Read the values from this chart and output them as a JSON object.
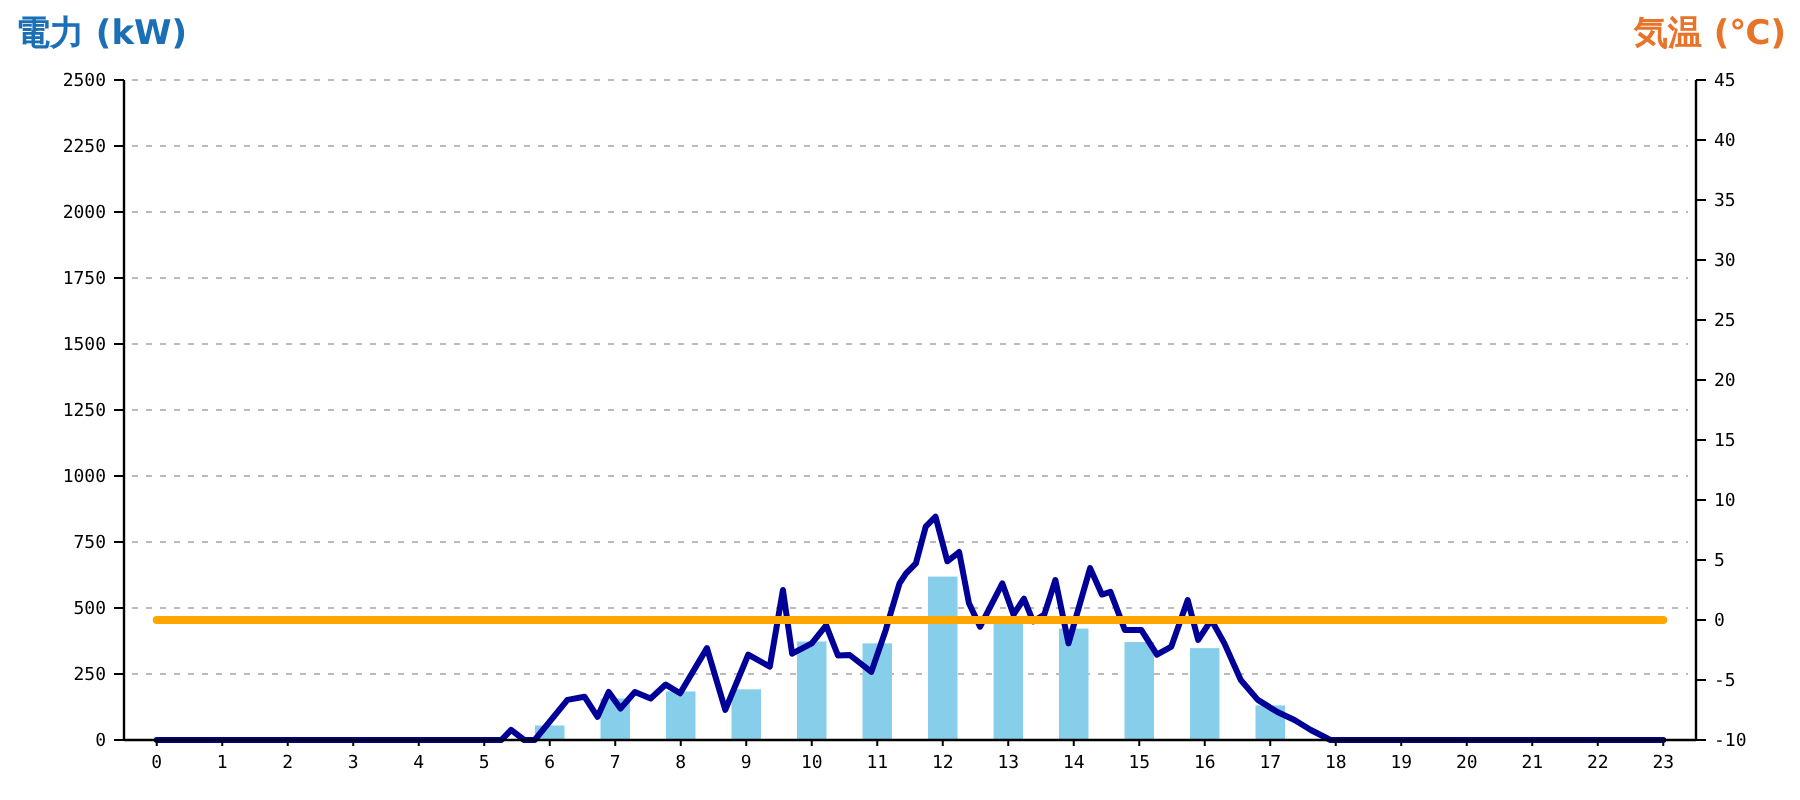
{
  "chart_data": {
    "type": "bar",
    "ylabel": "電力 (kW)",
    "y2label": "気温 (℃)",
    "x": [
      0,
      1,
      2,
      3,
      4,
      5,
      6,
      7,
      8,
      9,
      10,
      11,
      12,
      13,
      14,
      15,
      16,
      17,
      18,
      19,
      20,
      21,
      22,
      23
    ],
    "xlim": [
      -0.5,
      23.5
    ],
    "xticks": [
      0,
      1,
      2,
      3,
      4,
      5,
      6,
      7,
      8,
      9,
      10,
      11,
      12,
      13,
      14,
      15,
      16,
      17,
      18,
      19,
      20,
      21,
      22,
      23
    ],
    "series": [
      {
        "color": "#87ceeb",
        "values": [
          0,
          0,
          0,
          0,
          0,
          0,
          55,
          157,
          184,
          192,
          373,
          366,
          619,
          442,
          422,
          371,
          348,
          131,
          0,
          0,
          0,
          0,
          0,
          0
        ]
      },
      {
        "type": "line",
        "color": "#000099",
        "x": [
          0,
          4.68,
          5.26,
          5.41,
          5.61,
          5.77,
          6.27,
          6.53,
          6.73,
          6.9,
          7.08,
          7.3,
          7.54,
          7.77,
          7.99,
          8.4,
          8.68,
          9.03,
          9.36,
          9.56,
          9.7,
          10.0,
          10.22,
          10.4,
          10.58,
          10.91,
          11.13,
          11.34,
          11.44,
          11.59,
          11.74,
          11.89,
          12.07,
          12.25,
          12.4,
          12.57,
          12.91,
          13.08,
          13.24,
          13.38,
          13.55,
          13.72,
          13.92,
          14.25,
          14.43,
          14.56,
          14.78,
          15.03,
          15.27,
          15.49,
          15.74,
          15.9,
          16.1,
          16.3,
          16.55,
          16.81,
          17.11,
          17.37,
          17.62,
          17.92,
          23
        ],
        "values": [
          0,
          0,
          0,
          38,
          0,
          0,
          152,
          164,
          88,
          182,
          119,
          182,
          157,
          210,
          177,
          348,
          114,
          323,
          278,
          568,
          327,
          366,
          434,
          320,
          322,
          258,
          417,
          593,
          631,
          669,
          808,
          846,
          677,
          712,
          518,
          429,
          593,
          475,
          535,
          449,
          475,
          606,
          366,
          651,
          551,
          561,
          417,
          417,
          323,
          354,
          530,
          379,
          455,
          366,
          227,
          152,
          106,
          76,
          38,
          0,
          0
        ]
      },
      {
        "type": "line",
        "axis": "y2",
        "color": "#ffa500",
        "values": [
          0,
          0,
          0,
          0,
          0,
          0,
          0,
          0,
          0,
          0,
          0,
          0,
          0,
          0,
          0,
          0,
          0,
          0,
          0,
          0,
          0,
          0,
          0,
          0
        ]
      }
    ],
    "ylim": [
      0,
      2500
    ],
    "yticks": [
      0,
      250,
      500,
      750,
      1000,
      1250,
      1500,
      1750,
      2000,
      2250,
      2500
    ],
    "y2lim": [
      -10,
      45
    ],
    "y2ticks": [
      -10,
      -5,
      0,
      5,
      10,
      15,
      20,
      25,
      30,
      35,
      40,
      45
    ],
    "grid": "y"
  }
}
